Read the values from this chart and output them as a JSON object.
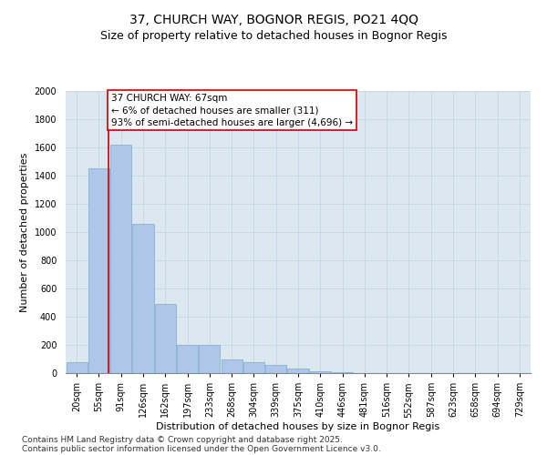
{
  "title1": "37, CHURCH WAY, BOGNOR REGIS, PO21 4QQ",
  "title2": "Size of property relative to detached houses in Bognor Regis",
  "xlabel": "Distribution of detached houses by size in Bognor Regis",
  "ylabel": "Number of detached properties",
  "categories": [
    "20sqm",
    "55sqm",
    "91sqm",
    "126sqm",
    "162sqm",
    "197sqm",
    "233sqm",
    "268sqm",
    "304sqm",
    "339sqm",
    "375sqm",
    "410sqm",
    "446sqm",
    "481sqm",
    "516sqm",
    "552sqm",
    "587sqm",
    "623sqm",
    "658sqm",
    "694sqm",
    "729sqm"
  ],
  "values": [
    80,
    1450,
    1620,
    1060,
    490,
    200,
    200,
    100,
    80,
    55,
    35,
    10,
    5,
    0,
    0,
    0,
    0,
    0,
    0,
    0,
    0
  ],
  "bar_color": "#aec6e8",
  "bar_edge_color": "#7aaad0",
  "vline_x": 1.45,
  "vline_color": "#cc0000",
  "annotation_text": "37 CHURCH WAY: 67sqm\n← 6% of detached houses are smaller (311)\n93% of semi-detached houses are larger (4,696) →",
  "annotation_box_color": "#cc0000",
  "ylim": [
    0,
    2000
  ],
  "yticks": [
    0,
    200,
    400,
    600,
    800,
    1000,
    1200,
    1400,
    1600,
    1800,
    2000
  ],
  "grid_color": "#c8d8e8",
  "bg_color": "#dce8f0",
  "footer1": "Contains HM Land Registry data © Crown copyright and database right 2025.",
  "footer2": "Contains public sector information licensed under the Open Government Licence v3.0.",
  "title1_fontsize": 10,
  "title2_fontsize": 9,
  "xlabel_fontsize": 8,
  "ylabel_fontsize": 8,
  "tick_fontsize": 7,
  "annotation_fontsize": 7.5,
  "footer_fontsize": 6.5
}
